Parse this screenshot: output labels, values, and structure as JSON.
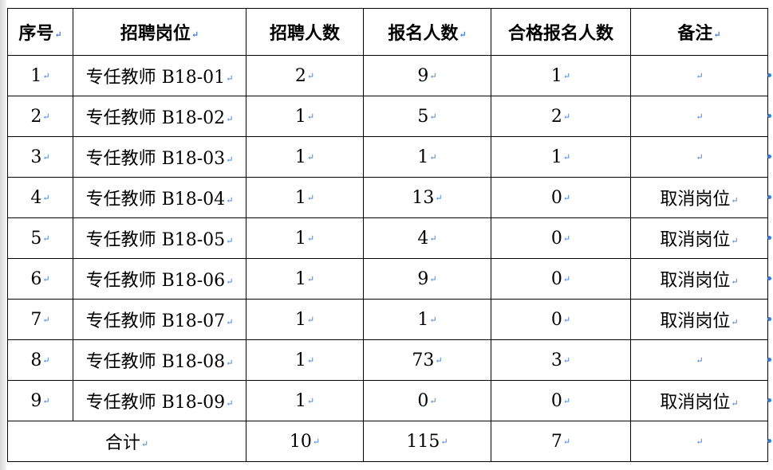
{
  "table": {
    "headers": [
      "序号",
      "招聘岗位",
      "招聘人数",
      "报名人数",
      "合格报名人数",
      "备注"
    ],
    "rows": [
      [
        "1",
        "专任教师 B18-01",
        "2",
        "9",
        "1",
        ""
      ],
      [
        "2",
        "专任教师 B18-02",
        "1",
        "5",
        "2",
        ""
      ],
      [
        "3",
        "专任教师 B18-03",
        "1",
        "1",
        "1",
        ""
      ],
      [
        "4",
        "专任教师 B18-04",
        "1",
        "13",
        "0",
        "取消岗位"
      ],
      [
        "5",
        "专任教师 B18-05",
        "1",
        "4",
        "0",
        "取消岗位"
      ],
      [
        "6",
        "专任教师 B18-06",
        "1",
        "9",
        "0",
        "取消岗位"
      ],
      [
        "7",
        "专任教师 B18-07",
        "1",
        "1",
        "0",
        "取消岗位"
      ],
      [
        "8",
        "专任教师 B18-08",
        "1",
        "73",
        "3",
        ""
      ],
      [
        "9",
        "专任教师 B18-09",
        "1",
        "0",
        "0",
        "取消岗位"
      ]
    ],
    "total": {
      "label": "合计",
      "recruit": "10",
      "applied": "115",
      "qualified": "7",
      "note": ""
    }
  }
}
